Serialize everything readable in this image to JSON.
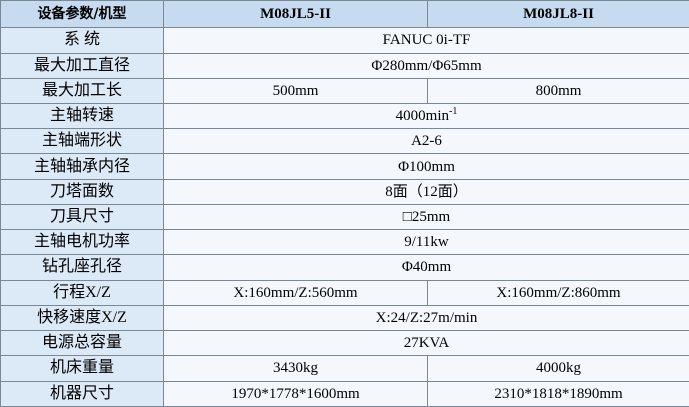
{
  "table": {
    "header": [
      "设备参数/机型",
      "M08JL5-II",
      "M08JL8-II"
    ],
    "rows": [
      {
        "label": "系 统",
        "values": [
          "FANUC 0i-TF"
        ]
      },
      {
        "label": "最大加工直径",
        "values": [
          "Φ280mm/Φ65mm"
        ]
      },
      {
        "label": "最大加工长",
        "values": [
          "500mm",
          "800mm"
        ]
      },
      {
        "label": "主轴转速",
        "values": [
          "4000min"
        ],
        "superscript": "-1"
      },
      {
        "label": "主轴端形状",
        "values": [
          "A2-6"
        ]
      },
      {
        "label": "主轴轴承内径",
        "values": [
          "Φ100mm"
        ]
      },
      {
        "label": "刀塔面数",
        "values": [
          "8面（12面）"
        ]
      },
      {
        "label": "刀具尺寸",
        "values": [
          "□25mm"
        ]
      },
      {
        "label": "主轴电机功率",
        "values": [
          "9/11kw"
        ]
      },
      {
        "label": "钻孔座孔径",
        "values": [
          "Φ40mm"
        ]
      },
      {
        "label": "行程X/Z",
        "values": [
          "X:160mm/Z:560mm",
          "X:160mm/Z:860mm"
        ]
      },
      {
        "label": "快移速度X/Z",
        "values": [
          "X:24/Z:27m/min"
        ]
      },
      {
        "label": "电源总容量",
        "values": [
          "27KVA"
        ]
      },
      {
        "label": "机床重量",
        "values": [
          "3430kg",
          "4000kg"
        ]
      },
      {
        "label": "机器尺寸",
        "values": [
          "1970*1778*1600mm",
          "2310*1818*1890mm"
        ]
      }
    ]
  }
}
